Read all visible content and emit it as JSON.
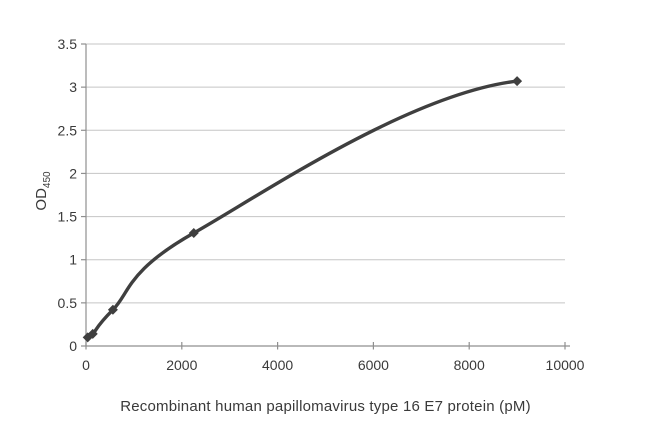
{
  "chart_data": {
    "type": "line",
    "subtype": "scatter-with-smooth-curve",
    "title": "",
    "xlabel": "Recombinant human papillomavirus type 16 E7 protein (pM)",
    "ylabel_main": "OD",
    "ylabel_sub": "450",
    "x": [
      35,
      141,
      562,
      2250,
      9000
    ],
    "y": [
      0.1,
      0.14,
      0.42,
      1.31,
      3.07
    ],
    "xlim": [
      0,
      10000
    ],
    "ylim": [
      0,
      3.5
    ],
    "xticks": [
      0,
      2000,
      4000,
      6000,
      8000,
      10000
    ],
    "yticks": [
      0,
      0.5,
      1,
      1.5,
      2,
      2.5,
      3,
      3.5
    ],
    "grid": "horizontal-only",
    "legend": "none",
    "marker": "diamond",
    "colors": {
      "line": "#3f3f3f",
      "marker": "#3f3f3f",
      "gridline": "#c5c5c5",
      "axis": "#8f8f8f",
      "text": "#3a3a3a",
      "background": "#ffffff"
    }
  }
}
